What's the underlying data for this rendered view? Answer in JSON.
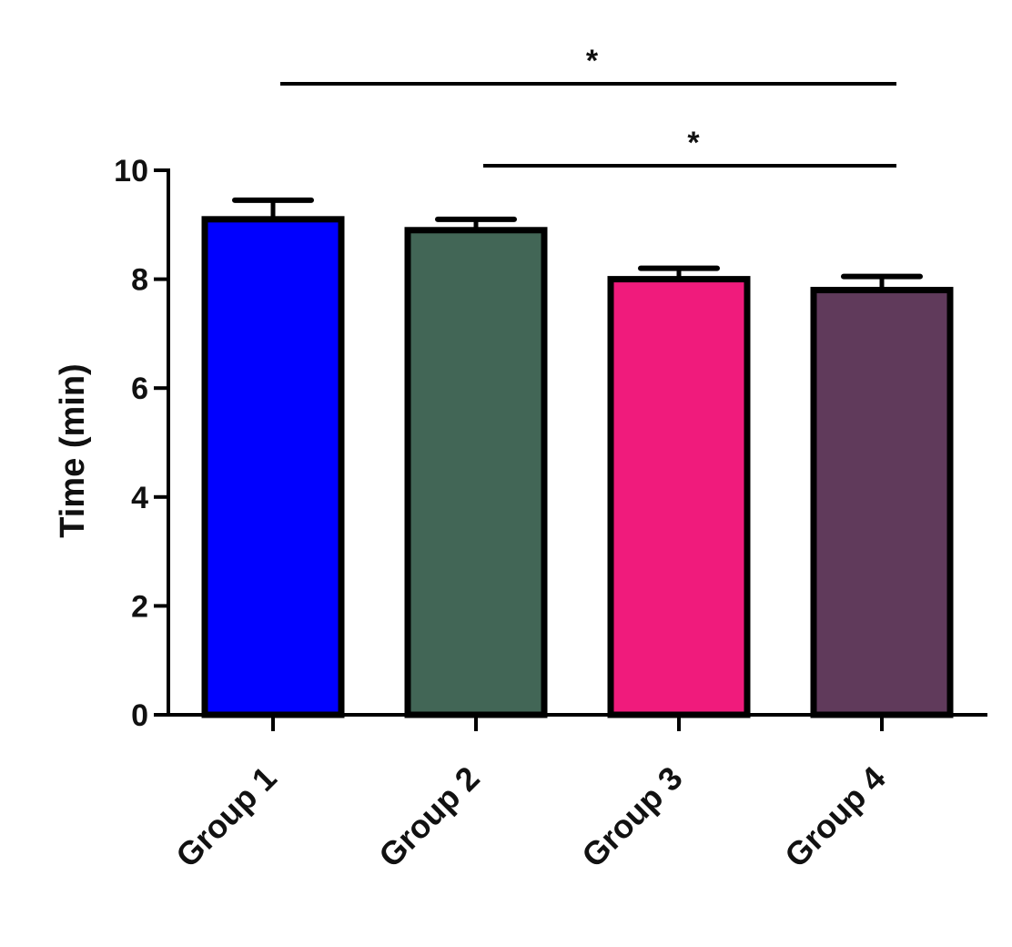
{
  "chart_data": {
    "type": "bar",
    "title": "",
    "xlabel": "",
    "ylabel": "Time (min)",
    "ylim": [
      0,
      10
    ],
    "yticks": [
      0,
      2,
      4,
      6,
      8,
      10
    ],
    "ytick_labels": [
      "0",
      "2",
      "4",
      "6",
      "8",
      "10"
    ],
    "grid": false,
    "legend": "none",
    "categories": [
      "Group 1",
      "Group 2",
      "Group 3",
      "Group 4"
    ],
    "values": [
      9.1,
      8.9,
      8.0,
      7.8
    ],
    "errors": [
      0.35,
      0.2,
      0.2,
      0.25
    ],
    "colors": [
      "#0000ff",
      "#426656",
      "#f01b7c",
      "#603a5b"
    ],
    "significance": [
      {
        "from": "Group 1",
        "to": "Group 4",
        "label": "*"
      },
      {
        "from": "Group 2",
        "to": "Group 4",
        "label": "*"
      }
    ]
  }
}
